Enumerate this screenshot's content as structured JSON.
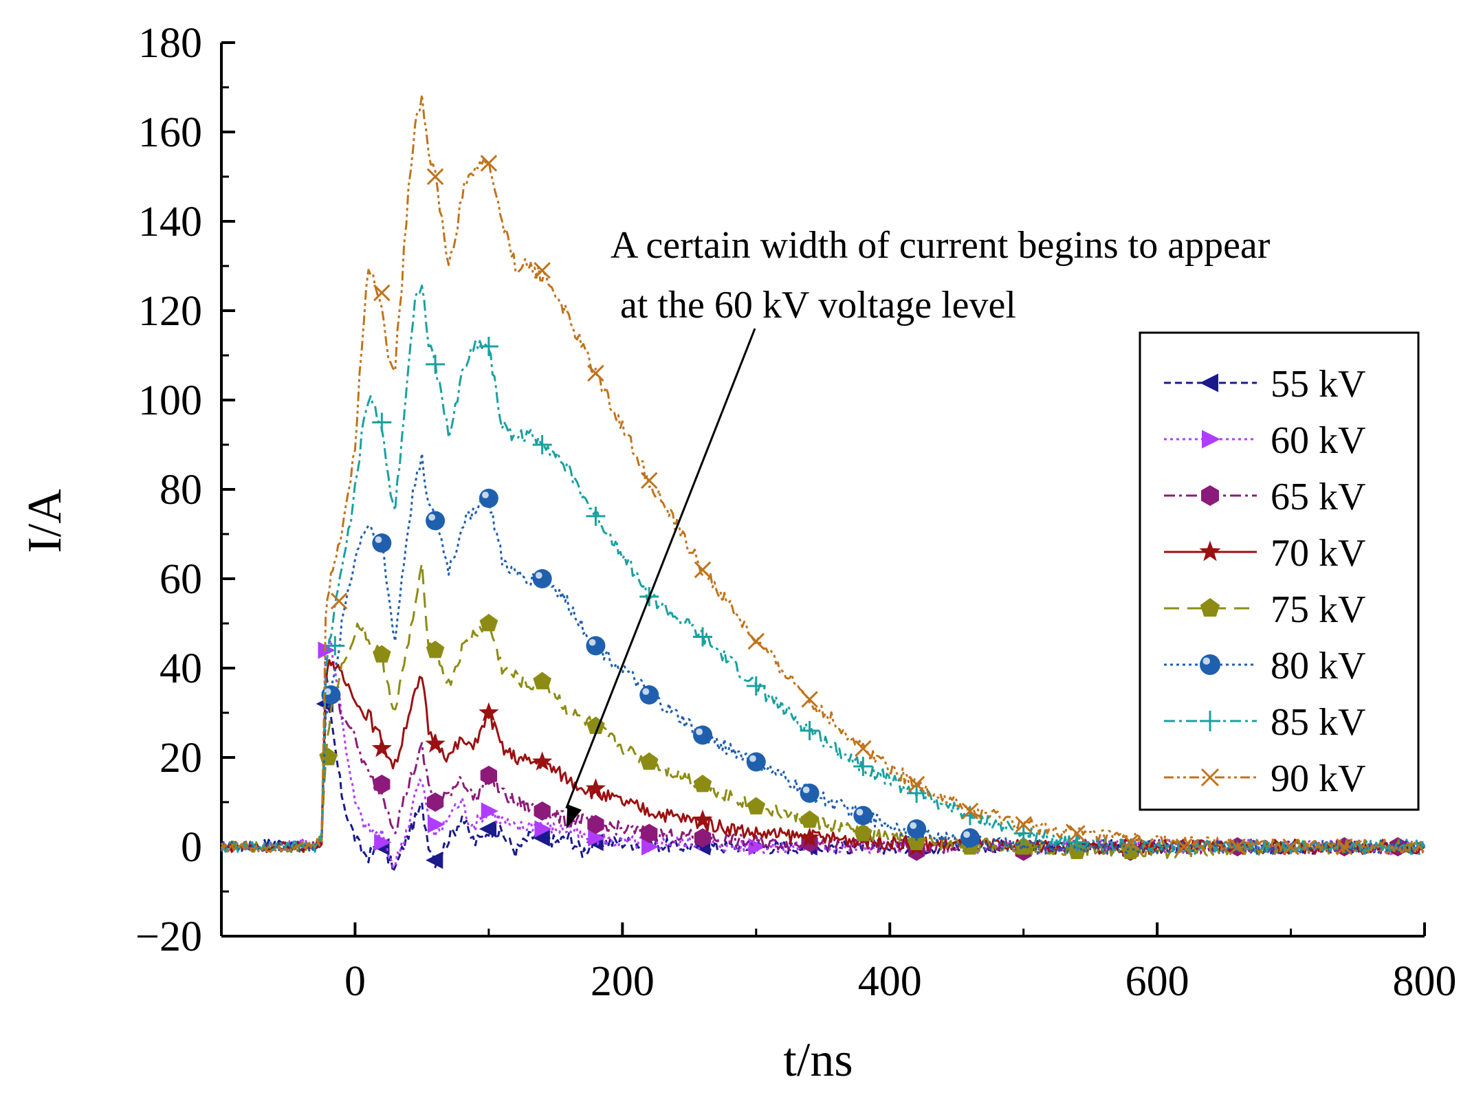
{
  "chart_data": {
    "type": "line",
    "title": "",
    "xlabel": "t/ns",
    "ylabel": "I/A",
    "xlim": [
      -100,
      800
    ],
    "ylim": [
      -20,
      180
    ],
    "xticks": [
      0,
      200,
      400,
      600,
      800
    ],
    "xtick_labels": [
      "0",
      "200",
      "400",
      "600",
      "800"
    ],
    "yticks": [
      -20,
      0,
      20,
      40,
      60,
      80,
      100,
      120,
      140,
      160,
      180
    ],
    "ytick_labels": [
      "−20",
      "0",
      "20",
      "40",
      "60",
      "80",
      "100",
      "120",
      "140",
      "160",
      "180"
    ],
    "grid": false,
    "legend_position": "right",
    "annotation": {
      "lines": [
        "A certain width of current begins to appear",
        "at the 60 kV voltage level"
      ],
      "arrow_target": {
        "x": 158,
        "y": 4
      }
    },
    "series": [
      {
        "name": "55 kV",
        "color": "#1a1a8c",
        "dash": "short-dash",
        "marker": "triangle-left",
        "x": [
          -100,
          -80,
          -60,
          -40,
          -30,
          -25,
          -22,
          -18,
          -14,
          -10,
          -5,
          0,
          5,
          10,
          15,
          20,
          25,
          30,
          35,
          40,
          45,
          50,
          55,
          60,
          65,
          70,
          75,
          80,
          85,
          90,
          95,
          100,
          110,
          120,
          130,
          140,
          150,
          160,
          170,
          180,
          200,
          250,
          300,
          400,
          500,
          600,
          700,
          800
        ],
        "values": [
          0,
          0,
          1,
          0,
          0,
          2,
          32,
          28,
          20,
          12,
          6,
          2,
          -1,
          -2,
          -1,
          1,
          -3,
          -5,
          -1,
          3,
          6,
          9,
          1,
          -3,
          -1,
          2,
          4,
          7,
          3,
          1,
          2,
          4,
          3,
          -1,
          2,
          3,
          1,
          2,
          -1,
          1,
          1,
          0,
          0,
          0,
          0,
          0,
          0,
          0
        ],
        "marker_x": [
          -22,
          20,
          60,
          100,
          140,
          180,
          260,
          340
        ],
        "marker_y": [
          32,
          0,
          -3,
          4,
          2,
          1,
          0,
          0
        ]
      },
      {
        "name": "60 kV",
        "color": "#b03cff",
        "dash": "dot",
        "marker": "triangle-right",
        "x": [
          -100,
          -80,
          -60,
          -40,
          -30,
          -25,
          -22,
          -18,
          -14,
          -10,
          -5,
          0,
          5,
          10,
          15,
          20,
          25,
          30,
          35,
          40,
          45,
          50,
          55,
          60,
          65,
          70,
          75,
          80,
          85,
          90,
          95,
          100,
          110,
          120,
          130,
          140,
          150,
          160,
          170,
          180,
          200,
          250,
          300,
          400,
          500,
          600,
          700,
          800
        ],
        "values": [
          0,
          0,
          0,
          1,
          0,
          2,
          44,
          46,
          38,
          30,
          18,
          10,
          6,
          4,
          3,
          3,
          -2,
          -4,
          1,
          5,
          12,
          15,
          6,
          3,
          4,
          7,
          9,
          10,
          6,
          5,
          7,
          8,
          6,
          4,
          5,
          5,
          4,
          4,
          2,
          2,
          1,
          1,
          0,
          0,
          0,
          0,
          0,
          0
        ],
        "marker_x": [
          -22,
          20,
          60,
          100,
          140,
          180,
          220,
          300
        ],
        "marker_y": [
          44,
          1,
          5,
          8,
          4,
          2,
          0,
          0
        ]
      },
      {
        "name": "65 kV",
        "color": "#8b1a7a",
        "dash": "dash-dot",
        "marker": "hexagon",
        "x": [
          -100,
          -80,
          -60,
          -40,
          -30,
          -25,
          -22,
          -18,
          -14,
          -10,
          -5,
          0,
          5,
          10,
          15,
          20,
          25,
          30,
          35,
          40,
          45,
          50,
          55,
          60,
          65,
          70,
          75,
          80,
          85,
          90,
          95,
          100,
          110,
          120,
          130,
          140,
          150,
          160,
          170,
          180,
          200,
          220,
          260,
          300,
          400,
          500,
          600,
          700,
          800
        ],
        "values": [
          0,
          0,
          0,
          0,
          0,
          2,
          38,
          36,
          34,
          30,
          28,
          24,
          20,
          16,
          14,
          12,
          8,
          4,
          9,
          14,
          18,
          22,
          14,
          10,
          10,
          12,
          14,
          16,
          12,
          11,
          13,
          16,
          12,
          10,
          9,
          8,
          7,
          6,
          6,
          5,
          4,
          3,
          2,
          1,
          0,
          0,
          0,
          0,
          0
        ],
        "marker_x": [
          20,
          60,
          100,
          140,
          180,
          220,
          260,
          340,
          420,
          500,
          580,
          660,
          740,
          780
        ],
        "marker_y": [
          14,
          10,
          16,
          8,
          5,
          3,
          2,
          1,
          -1,
          -1,
          -1,
          0,
          0,
          0
        ]
      },
      {
        "name": "70 kV",
        "color": "#9b1010",
        "dash": "solid",
        "marker": "star",
        "x": [
          -100,
          -80,
          -60,
          -40,
          -30,
          -25,
          -22,
          -18,
          -14,
          -10,
          -5,
          0,
          5,
          10,
          15,
          20,
          25,
          30,
          35,
          40,
          45,
          50,
          55,
          60,
          65,
          70,
          75,
          80,
          85,
          90,
          95,
          100,
          110,
          120,
          130,
          140,
          150,
          160,
          180,
          200,
          220,
          250,
          300,
          350,
          400,
          500,
          600,
          700,
          800
        ],
        "values": [
          0,
          0,
          0,
          0,
          0,
          2,
          38,
          42,
          40,
          38,
          36,
          34,
          30,
          30,
          26,
          24,
          20,
          18,
          24,
          30,
          34,
          38,
          26,
          24,
          22,
          20,
          22,
          24,
          22,
          24,
          26,
          30,
          22,
          20,
          19,
          19,
          17,
          15,
          12,
          10,
          8,
          6,
          3,
          2,
          1,
          0,
          0,
          0,
          0
        ],
        "marker_x": [
          20,
          60,
          100,
          140,
          180,
          260,
          340,
          420
        ],
        "marker_y": [
          22,
          23,
          30,
          19,
          13,
          6,
          2,
          0
        ]
      },
      {
        "name": "75 kV",
        "color": "#8c8c14",
        "dash": "long-dash",
        "marker": "pentagon",
        "x": [
          -100,
          -80,
          -60,
          -40,
          -30,
          -25,
          -22,
          -18,
          -14,
          -10,
          -5,
          0,
          5,
          10,
          15,
          20,
          25,
          30,
          35,
          40,
          45,
          50,
          55,
          60,
          65,
          70,
          75,
          80,
          85,
          90,
          95,
          100,
          110,
          120,
          130,
          140,
          150,
          160,
          180,
          200,
          220,
          260,
          300,
          340,
          380,
          420,
          500,
          600,
          700,
          800
        ],
        "values": [
          0,
          0,
          0,
          0,
          0,
          2,
          20,
          30,
          36,
          40,
          44,
          48,
          50,
          46,
          44,
          43,
          36,
          30,
          38,
          46,
          54,
          62,
          46,
          44,
          40,
          36,
          40,
          44,
          46,
          48,
          49,
          50,
          40,
          38,
          36,
          37,
          34,
          30,
          27,
          22,
          19,
          14,
          9,
          6,
          3,
          1,
          0,
          -1,
          0,
          0
        ],
        "marker_x": [
          -20,
          20,
          60,
          100,
          140,
          180,
          220,
          260,
          300,
          340,
          380,
          420,
          460,
          500,
          540,
          580
        ],
        "marker_y": [
          20,
          43,
          44,
          50,
          37,
          27,
          19,
          14,
          9,
          6,
          3,
          1,
          0,
          0,
          -1,
          -1
        ]
      },
      {
        "name": "80 kV",
        "color": "#1f5fae",
        "dash": "dot",
        "marker": "circle",
        "x": [
          -100,
          -80,
          -60,
          -40,
          -30,
          -25,
          -22,
          -18,
          -14,
          -10,
          -5,
          0,
          5,
          10,
          15,
          20,
          25,
          30,
          35,
          40,
          45,
          50,
          55,
          60,
          65,
          70,
          75,
          80,
          85,
          90,
          95,
          100,
          110,
          120,
          130,
          140,
          150,
          160,
          180,
          200,
          220,
          260,
          300,
          340,
          380,
          420,
          460,
          500,
          600,
          700,
          800
        ],
        "values": [
          0,
          0,
          0,
          0,
          0,
          2,
          30,
          34,
          40,
          50,
          58,
          64,
          70,
          72,
          70,
          68,
          56,
          46,
          60,
          72,
          82,
          88,
          76,
          73,
          68,
          62,
          66,
          72,
          74,
          76,
          77,
          78,
          64,
          61,
          60,
          60,
          58,
          54,
          45,
          40,
          34,
          25,
          19,
          12,
          7,
          3,
          1,
          0,
          0,
          0,
          0
        ],
        "marker_x": [
          -18,
          20,
          60,
          100,
          140,
          180,
          220,
          260,
          300,
          340,
          380,
          420,
          460
        ],
        "marker_y": [
          34,
          68,
          73,
          78,
          60,
          45,
          34,
          25,
          19,
          12,
          7,
          4,
          2
        ]
      },
      {
        "name": "85 kV",
        "color": "#1aa0a0",
        "dash": "dash-dot",
        "marker": "plus",
        "x": [
          -100,
          -80,
          -60,
          -40,
          -30,
          -25,
          -22,
          -18,
          -14,
          -10,
          -5,
          0,
          5,
          10,
          15,
          20,
          25,
          30,
          35,
          40,
          45,
          50,
          55,
          60,
          65,
          70,
          75,
          80,
          85,
          90,
          95,
          100,
          110,
          120,
          130,
          140,
          150,
          160,
          180,
          200,
          220,
          260,
          300,
          340,
          380,
          420,
          460,
          500,
          540,
          600,
          700,
          800
        ],
        "values": [
          0,
          0,
          0,
          0,
          0,
          2,
          40,
          48,
          56,
          62,
          70,
          80,
          92,
          100,
          98,
          94,
          82,
          76,
          92,
          108,
          122,
          127,
          112,
          108,
          100,
          92,
          98,
          106,
          110,
          112,
          113,
          112,
          94,
          92,
          92,
          91,
          88,
          84,
          74,
          66,
          56,
          47,
          36,
          26,
          18,
          12,
          7,
          3,
          1,
          0,
          0,
          0
        ],
        "marker_x": [
          -15,
          20,
          60,
          100,
          140,
          180,
          220,
          260,
          300,
          340,
          380,
          420,
          460,
          500,
          540
        ],
        "marker_y": [
          45,
          95,
          108,
          112,
          90,
          74,
          56,
          47,
          36,
          26,
          18,
          12,
          7,
          3,
          1
        ]
      },
      {
        "name": "90 kV",
        "color": "#c0731a",
        "dash": "dash-dot-dot",
        "marker": "x",
        "x": [
          -100,
          -80,
          -60,
          -40,
          -30,
          -25,
          -22,
          -18,
          -14,
          -10,
          -5,
          0,
          5,
          10,
          15,
          20,
          25,
          30,
          35,
          40,
          45,
          50,
          55,
          60,
          65,
          70,
          75,
          80,
          85,
          90,
          95,
          100,
          110,
          120,
          130,
          140,
          150,
          160,
          180,
          200,
          220,
          260,
          300,
          340,
          380,
          420,
          460,
          500,
          540,
          600,
          700,
          800
        ],
        "values": [
          0,
          0,
          0,
          0,
          0,
          2,
          52,
          60,
          66,
          70,
          80,
          90,
          112,
          130,
          126,
          122,
          108,
          108,
          126,
          148,
          162,
          168,
          156,
          150,
          140,
          130,
          136,
          146,
          150,
          152,
          153,
          153,
          140,
          130,
          130,
          128,
          124,
          118,
          106,
          94,
          82,
          62,
          46,
          33,
          22,
          14,
          8,
          5,
          3,
          1,
          0,
          0
        ],
        "marker_x": [
          -12,
          20,
          60,
          100,
          140,
          180,
          220,
          260,
          300,
          340,
          380,
          420,
          460,
          500,
          540,
          580,
          620,
          660,
          700,
          740
        ],
        "marker_y": [
          55,
          124,
          150,
          153,
          129,
          106,
          82,
          62,
          46,
          33,
          22,
          14,
          8,
          5,
          3,
          1,
          0,
          0,
          0,
          0
        ]
      }
    ]
  }
}
